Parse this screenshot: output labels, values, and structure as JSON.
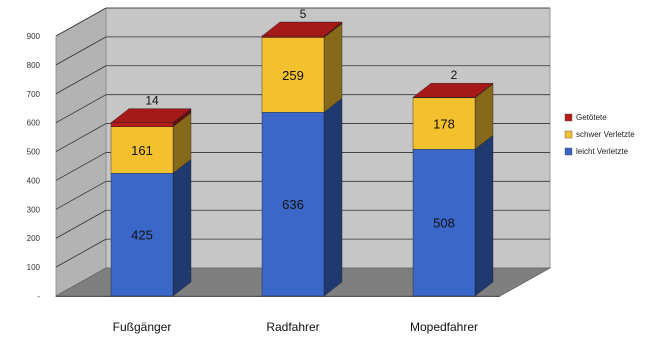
{
  "chart_data": {
    "type": "bar",
    "stacked": true,
    "categories": [
      "Fußgänger",
      "Radfahrer",
      "Mopedfahrer"
    ],
    "series": [
      {
        "name": "leicht Verletzte",
        "color": "#3a67c8",
        "values": [
          425,
          636,
          508
        ]
      },
      {
        "name": "schwer Verletzte",
        "color": "#f3c12e",
        "values": [
          161,
          259,
          178
        ]
      },
      {
        "name": "Getötete",
        "color": "#b71c1c",
        "values": [
          14,
          5,
          2
        ]
      }
    ],
    "yticks": [
      "-",
      "100",
      "200",
      "300",
      "400",
      "500",
      "600",
      "700",
      "800",
      "900"
    ],
    "ylim": [
      0,
      900
    ],
    "grid": true,
    "legend_position": "right",
    "title": "",
    "xlabel": "",
    "ylabel": ""
  }
}
